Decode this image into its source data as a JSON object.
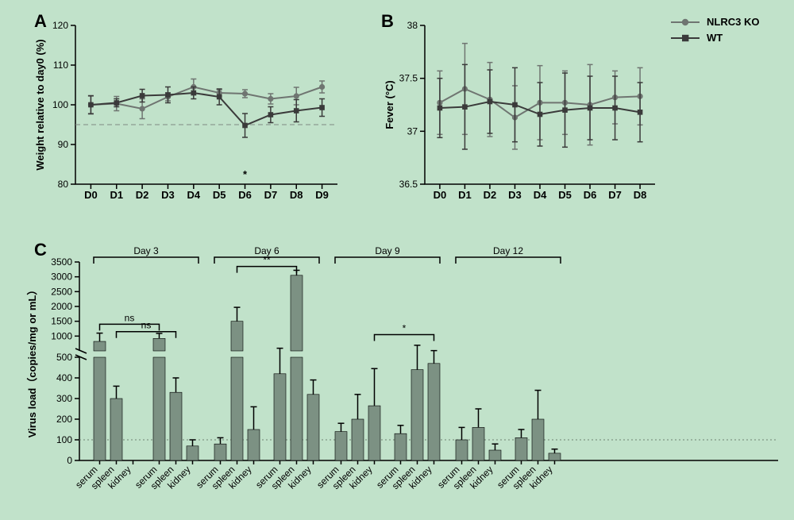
{
  "background_color": "#c1e2ca",
  "legend": {
    "items": [
      {
        "label": "NLRC3 KO",
        "shape": "circle",
        "color": "#6f7571"
      },
      {
        "label": "WT",
        "shape": "square",
        "color": "#3a3a3a"
      }
    ]
  },
  "panelA": {
    "letter": "A",
    "type": "line-errorbar",
    "ylabel": "Weight relative to day0 (%)",
    "ylim": [
      80,
      120
    ],
    "ytick_step": 10,
    "xcats": [
      "D0",
      "D1",
      "D2",
      "D3",
      "D4",
      "D5",
      "D6",
      "D7",
      "D8",
      "D9"
    ],
    "ref_line": 95,
    "annot": {
      "x": "D6",
      "text": "*"
    },
    "series": [
      {
        "name": "NLRC3 KO",
        "color": "#6f7571",
        "marker": "circle",
        "y": [
          100,
          100.3,
          99.0,
          102.0,
          104.5,
          103.0,
          102.8,
          101.5,
          102.2,
          104.5
        ],
        "err": [
          2.2,
          1.8,
          2.5,
          1.0,
          2.0,
          0.8,
          1.0,
          1.3,
          2.2,
          1.5
        ]
      },
      {
        "name": "WT",
        "color": "#3a3a3a",
        "marker": "square",
        "y": [
          100,
          100.5,
          102.3,
          102.5,
          103.0,
          102.0,
          94.8,
          97.5,
          98.5,
          99.3
        ],
        "err": [
          2.3,
          1.0,
          1.6,
          2.0,
          1.5,
          2.0,
          3.0,
          2.0,
          2.8,
          2.2
        ]
      }
    ]
  },
  "panelB": {
    "letter": "B",
    "type": "line-errorbar",
    "ylabel": "Fever (°C)",
    "ylim": [
      36.5,
      38.0
    ],
    "yticks": [
      36.5,
      37.0,
      37.5,
      38.0
    ],
    "xcats": [
      "D0",
      "D1",
      "D2",
      "D3",
      "D4",
      "D5",
      "D6",
      "D7",
      "D8"
    ],
    "series": [
      {
        "name": "NLRC3 KO",
        "color": "#6f7571",
        "marker": "circle",
        "y": [
          37.27,
          37.4,
          37.3,
          37.13,
          37.27,
          37.27,
          37.25,
          37.32,
          37.33
        ],
        "err": [
          0.3,
          0.43,
          0.35,
          0.3,
          0.35,
          0.3,
          0.38,
          0.25,
          0.27
        ]
      },
      {
        "name": "WT",
        "color": "#3a3a3a",
        "marker": "square",
        "y": [
          37.22,
          37.23,
          37.28,
          37.25,
          37.16,
          37.2,
          37.22,
          37.22,
          37.18
        ],
        "err": [
          0.28,
          0.4,
          0.3,
          0.35,
          0.3,
          0.35,
          0.3,
          0.3,
          0.28
        ]
      }
    ]
  },
  "panelC": {
    "letter": "C",
    "type": "broken-axis-bar",
    "ylabel": "Virus load（copies/mg or mL）",
    "y_lower": {
      "min": 0,
      "max": 500,
      "ticks": [
        0,
        100,
        200,
        300,
        400,
        500
      ]
    },
    "y_upper": {
      "min": 500,
      "max": 3500,
      "ticks": [
        500,
        1000,
        1500,
        2000,
        2500,
        3000,
        3500
      ]
    },
    "ref_line": 100,
    "tissues": [
      "serum",
      "spleen",
      "kidney"
    ],
    "day_labels": [
      "Day 3",
      "Day 6",
      "Day 9",
      "Day 12"
    ],
    "bar_color": "#7c9183",
    "groups": [
      {
        "day": "Day 3",
        "left": "NLRC3 KO",
        "right": "WT",
        "left_vals": {
          "serum": 820,
          "spleen": 300,
          "kidney": 0
        },
        "left_err": {
          "serum": 280,
          "spleen": 60,
          "kidney": 0
        },
        "right_vals": {
          "serum": 920,
          "spleen": 330,
          "kidney": 70
        },
        "right_err": {
          "serum": 170,
          "spleen": 70,
          "kidney": 30
        },
        "annot": [
          {
            "text": "ns",
            "from": "left.serum",
            "to": "right.serum",
            "y": 1400
          },
          {
            "text": "ns",
            "from": "left.spleen",
            "to": "right.spleen",
            "y": 1150
          }
        ]
      },
      {
        "day": "Day 6",
        "left": "NLRC3 KO",
        "right": "WT",
        "left_vals": {
          "serum": 80,
          "spleen": 1500,
          "kidney": 150
        },
        "left_err": {
          "serum": 30,
          "spleen": 470,
          "kidney": 110
        },
        "right_vals": {
          "serum": 420,
          "spleen": 3050,
          "kidney": 320
        },
        "right_err": {
          "serum": 170,
          "spleen": 170,
          "kidney": 70
        },
        "annot": [
          {
            "text": "**",
            "from": "left.spleen",
            "to": "right.spleen",
            "y": 3350
          }
        ]
      },
      {
        "day": "Day 9",
        "left": "NLRC3 KO",
        "right": "WT",
        "left_vals": {
          "serum": 140,
          "spleen": 200,
          "kidney": 265
        },
        "left_err": {
          "serum": 40,
          "spleen": 120,
          "kidney": 180
        },
        "right_vals": {
          "serum": 130,
          "spleen": 440,
          "kidney": 470
        },
        "right_err": {
          "serum": 40,
          "spleen": 250,
          "kidney": 40
        },
        "annot": [
          {
            "text": "*",
            "from": "left.kidney",
            "to": "right.kidney",
            "y": 1050
          }
        ]
      },
      {
        "day": "Day 12",
        "left": "NLRC3 KO",
        "right": "WT",
        "left_vals": {
          "serum": 100,
          "spleen": 160,
          "kidney": 50
        },
        "left_err": {
          "serum": 60,
          "spleen": 90,
          "kidney": 30
        },
        "right_vals": {
          "serum": 110,
          "spleen": 200,
          "kidney": 35
        },
        "right_err": {
          "serum": 40,
          "spleen": 140,
          "kidney": 20
        },
        "annot": []
      }
    ]
  }
}
